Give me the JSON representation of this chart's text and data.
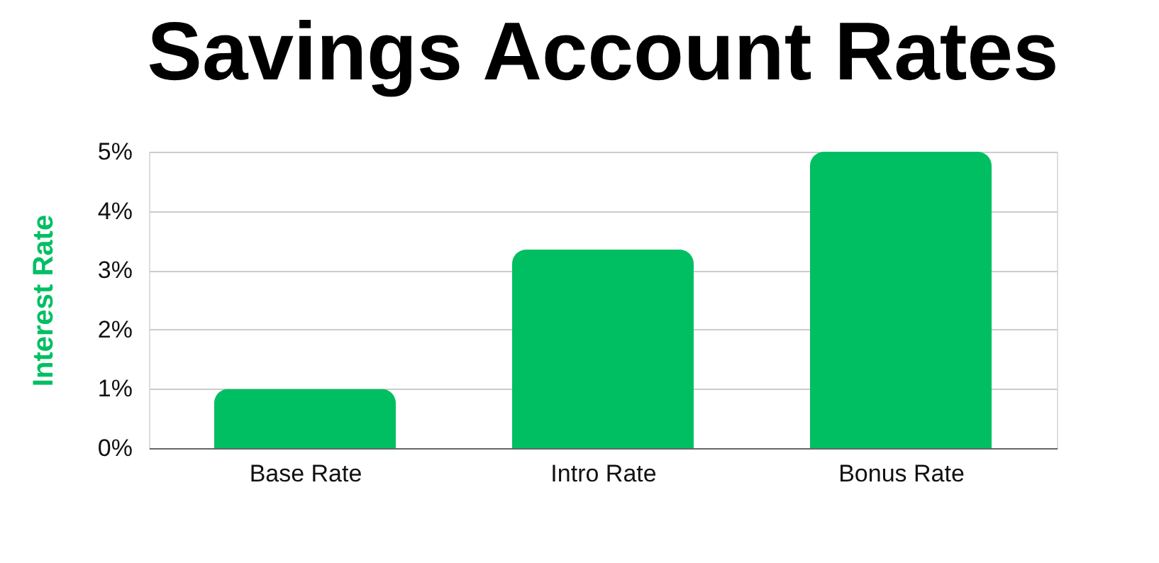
{
  "chart_data": {
    "type": "bar",
    "title": "Savings Account Rates",
    "ylabel": "Interest Rate",
    "categories": [
      "Base Rate",
      "Intro Rate",
      "Bonus Rate"
    ],
    "values": [
      1,
      3.35,
      5
    ],
    "color": "#00bf63",
    "ylim": [
      0,
      5
    ],
    "yticks": [
      {
        "value": 0,
        "label": "0%"
      },
      {
        "value": 1,
        "label": "1%"
      },
      {
        "value": 2,
        "label": "2%"
      },
      {
        "value": 3,
        "label": "3%"
      },
      {
        "value": 4,
        "label": "4%"
      },
      {
        "value": 5,
        "label": "5%"
      }
    ],
    "grid": "y"
  }
}
